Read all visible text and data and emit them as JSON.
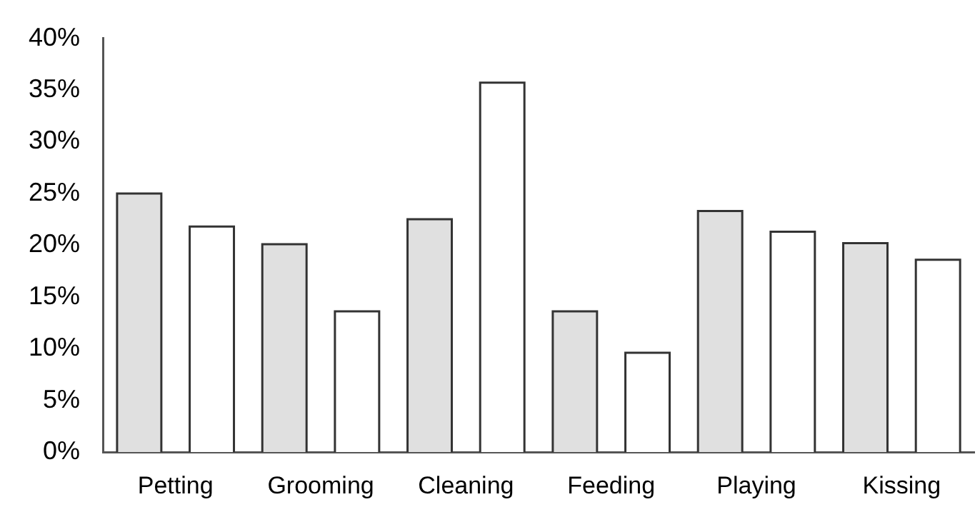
{
  "chart_data": {
    "type": "bar",
    "categories": [
      "Petting",
      "Grooming",
      "Cleaning",
      "Feeding",
      "Playing",
      "Kissing"
    ],
    "series": [
      {
        "color": "#e0e0e0",
        "values": [
          24.9,
          20.0,
          22.4,
          13.5,
          23.2,
          20.1
        ]
      },
      {
        "color": "#ffffff",
        "values": [
          21.7,
          13.5,
          35.6,
          9.5,
          21.2,
          18.5
        ]
      }
    ],
    "ylim": [
      0,
      40
    ],
    "yticks": [
      {
        "value": 0,
        "label": "0%"
      },
      {
        "value": 5,
        "label": "5%"
      },
      {
        "value": 10,
        "label": "10%"
      },
      {
        "value": 15,
        "label": "15%"
      },
      {
        "value": 20,
        "label": "20%"
      },
      {
        "value": 25,
        "label": "25%"
      },
      {
        "value": 30,
        "label": "30%"
      },
      {
        "value": 35,
        "label": "35%"
      },
      {
        "value": 40,
        "label": "40%"
      }
    ],
    "grid": false,
    "legend": false
  }
}
